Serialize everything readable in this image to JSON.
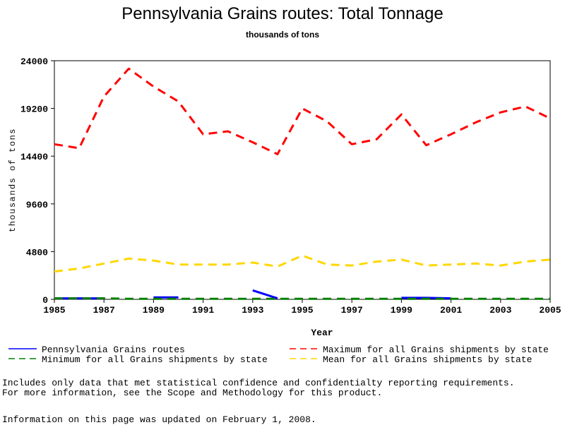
{
  "chart_data": {
    "type": "line",
    "title": "Pennsylvania Grains routes: Total Tonnage",
    "subtitle": "thousands of tons",
    "xlabel": "Year",
    "ylabel": "thousands of tons",
    "xlim": [
      1985,
      2005
    ],
    "ylim": [
      0,
      24000
    ],
    "x_ticks": [
      "1985",
      "1987",
      "1989",
      "1991",
      "1993",
      "1995",
      "1997",
      "1999",
      "2001",
      "2003",
      "2005"
    ],
    "y_ticks": [
      "0",
      "4800",
      "9600",
      "14400",
      "19200",
      "24000"
    ],
    "x": [
      1985,
      1986,
      1987,
      1988,
      1989,
      1990,
      1991,
      1992,
      1993,
      1994,
      1995,
      1996,
      1997,
      1998,
      1999,
      2000,
      2001,
      2002,
      2003,
      2004,
      2005
    ],
    "grid": false,
    "legend_position": "bottom",
    "series": [
      {
        "name": "Pennsylvania Grains routes",
        "color": "#0000ff",
        "dash": "solid",
        "values": [
          100,
          100,
          100,
          null,
          200,
          200,
          null,
          null,
          900,
          100,
          null,
          null,
          null,
          null,
          150,
          150,
          100,
          null,
          null,
          null,
          null
        ]
      },
      {
        "name": "Maximum for all Grains shipments by state",
        "color": "#ff0000",
        "dash": "dashed",
        "values": [
          15600,
          15200,
          20400,
          23200,
          21400,
          19900,
          16600,
          16900,
          15800,
          14600,
          19200,
          17900,
          15600,
          16100,
          18600,
          15500,
          16600,
          17800,
          18800,
          19400,
          18200
        ]
      },
      {
        "name": "Minimum for all Grains shipments by state",
        "color": "#008000",
        "dash": "dashed",
        "values": [
          100,
          100,
          100,
          50,
          50,
          50,
          50,
          50,
          50,
          50,
          50,
          50,
          50,
          50,
          50,
          50,
          50,
          50,
          50,
          50,
          50
        ]
      },
      {
        "name": "Mean for all Grains shipments by state",
        "color": "#ffd700",
        "dash": "dashed",
        "values": [
          2800,
          3100,
          3600,
          4100,
          3900,
          3500,
          3500,
          3500,
          3700,
          3300,
          4400,
          3500,
          3400,
          3800,
          4000,
          3400,
          3500,
          3600,
          3400,
          3800,
          4000
        ]
      }
    ]
  },
  "notes": {
    "line1": "Includes only data that met statistical confidence and confidentialty reporting requirements.",
    "line2": "For more information, see the Scope and Methodology for this product.",
    "updated": "Information on this page was updated on February 1, 2008."
  }
}
